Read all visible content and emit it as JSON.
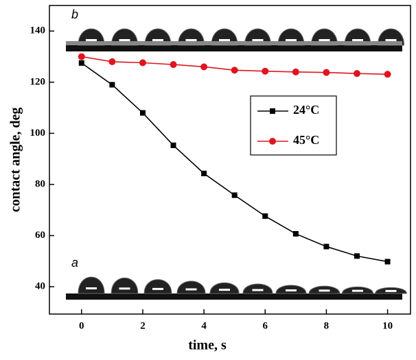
{
  "chart_data": {
    "type": "line",
    "x_label": "time, s",
    "y_label": "contact angle, deg",
    "x": [
      0,
      1,
      2,
      3,
      4,
      5,
      6,
      7,
      8,
      9,
      10
    ],
    "series": [
      {
        "name": "24°C",
        "color": "#000000",
        "marker": "square",
        "values": [
          127.5,
          119,
          108,
          95.3,
          84.3,
          75.8,
          67.6,
          60.7,
          55.7,
          52,
          49.8
        ]
      },
      {
        "name": "45°C",
        "color": "#e0141e",
        "marker": "circle",
        "values": [
          130,
          128,
          127.6,
          126.9,
          126,
          124.7,
          124.3,
          124,
          123.8,
          123.4,
          123.1
        ]
      }
    ],
    "xlim": [
      -1.05,
      10.75
    ],
    "ylim": [
      29.3,
      150
    ],
    "xticks": [
      0,
      2,
      4,
      6,
      8,
      10
    ],
    "yticks": [
      40,
      60,
      80,
      100,
      120,
      140
    ],
    "insets": [
      {
        "label": "b"
      },
      {
        "label": "a"
      }
    ],
    "legend": "upper right"
  }
}
